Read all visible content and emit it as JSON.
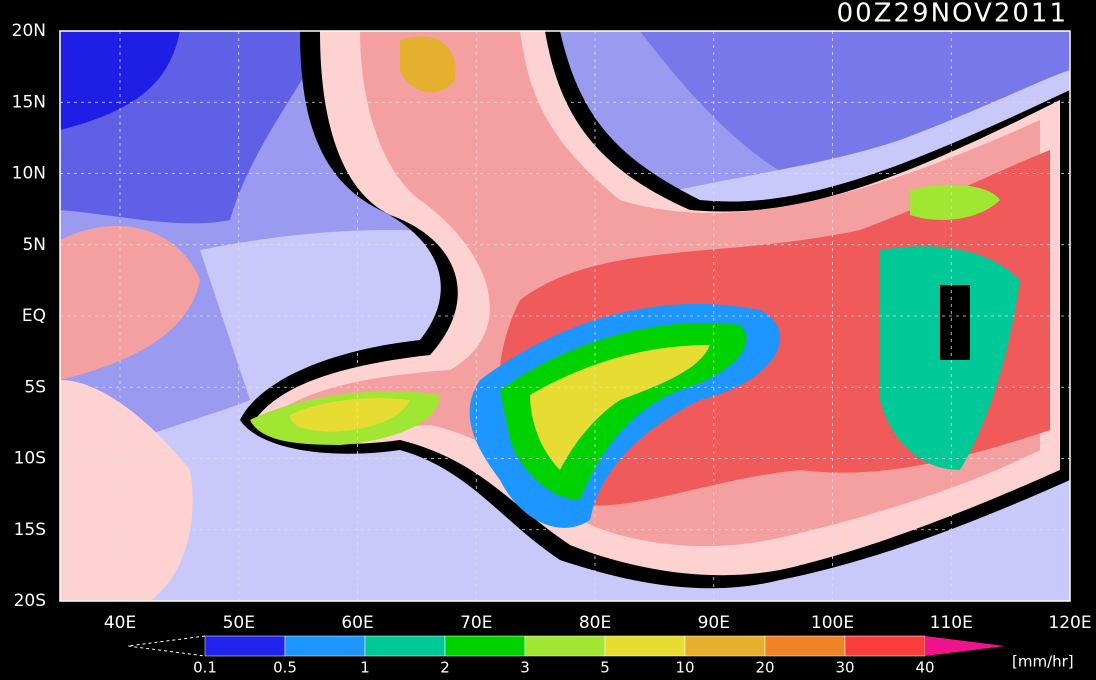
{
  "title": "00Z29NOV2011",
  "map": {
    "lat_labels": [
      "20N",
      "15N",
      "10N",
      "5N",
      "EQ",
      "5S",
      "10S",
      "15S",
      "20S"
    ],
    "lon_labels": [
      "40E",
      "50E",
      "60E",
      "70E",
      "80E",
      "90E",
      "100E",
      "110E",
      "120E"
    ]
  },
  "colorbar": {
    "levels": [
      0.1,
      0.5,
      1,
      2,
      3,
      5,
      10,
      20,
      30,
      40
    ],
    "colors": [
      "#2323f0",
      "#1e96ff",
      "#00c896",
      "#00d200",
      "#a0e632",
      "#e6dc32",
      "#e6af2d",
      "#f08228",
      "#fa3c3c"
    ],
    "over_color": "#f0148c",
    "unit": "[mm/hr]"
  }
}
